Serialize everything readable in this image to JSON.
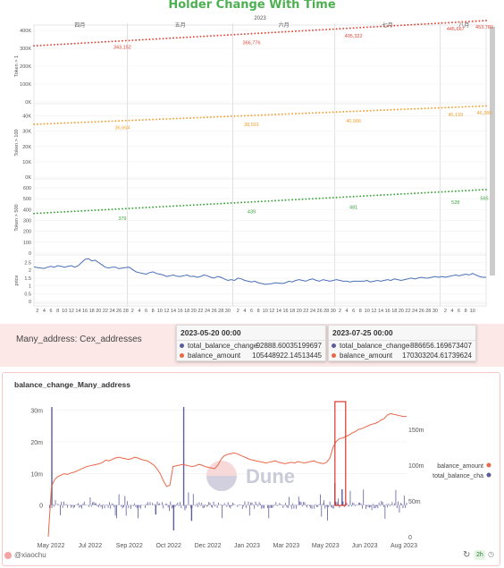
{
  "page": {
    "title": "Holder Change With Time",
    "info_label": "Many_address: Cex_addresses",
    "bottom_title": "balance_change_Many_address",
    "credit": "@xiaochu",
    "age_badge": "2h",
    "colors": {
      "title": "#4caf50",
      "red": "#e0463a",
      "orange": "#f0a030",
      "green": "#3ea33e",
      "blue": "#4a6fb5",
      "navy": "#5c5c9e",
      "balance": "#e8684a",
      "highlight_box": "#d9362b",
      "info_bg": "#fde8e8"
    },
    "icons": {
      "refresh": "refresh-icon",
      "clock": "clock-icon",
      "avatar": "avatar-icon"
    }
  },
  "tooltips": [
    {
      "date": "2023-05-20 00:00",
      "rows": [
        {
          "key": "total_balance_change",
          "value": "-92888.60035199697",
          "color": "#5c5c9e"
        },
        {
          "key": "balance_amount",
          "value": "105448922.14513445",
          "color": "#e8684a"
        }
      ]
    },
    {
      "date": "2023-07-25 00:00",
      "rows": [
        {
          "key": "total_balance_change",
          "value": "-886656.169673407",
          "color": "#5c5c9e"
        },
        {
          "key": "balance_amount",
          "value": "170303204.61739624",
          "color": "#e8684a"
        }
      ]
    }
  ],
  "chart_data": [
    {
      "type": "line",
      "title": "Holder Change With Time",
      "x_header_year": "2023",
      "x_months": [
        "四月",
        "五月",
        "六月",
        "七月",
        "八月"
      ],
      "x_month_days": [
        [
          "2",
          "4",
          "6",
          "8",
          "10",
          "12",
          "14",
          "16",
          "18",
          "20",
          "22",
          "24",
          "26",
          "28"
        ],
        [
          "2",
          "4",
          "6",
          "8",
          "10",
          "12",
          "14",
          "16",
          "18",
          "20",
          "22",
          "24",
          "26",
          "28",
          "30"
        ],
        [
          "2",
          "4",
          "6",
          "8",
          "10",
          "12",
          "14",
          "16",
          "18",
          "20",
          "22",
          "24",
          "26",
          "28",
          "30"
        ],
        [
          "2",
          "4",
          "6",
          "8",
          "10",
          "12",
          "14",
          "16",
          "18",
          "20",
          "22",
          "24",
          "26",
          "28",
          "30"
        ],
        [
          "2",
          "4",
          "6",
          "8",
          "10"
        ]
      ],
      "grid": true,
      "panels": [
        {
          "ylabel": "Token > 1",
          "color": "#e0463a",
          "yticks": [
            "400K",
            "300K",
            "200K",
            "100K",
            "0K"
          ],
          "ylim": [
            0,
            400000
          ],
          "start": 314000,
          "end": 455000,
          "labels": [
            {
              "day": 26,
              "value": 343152,
              "text": "343,152"
            },
            {
              "day": 64,
              "value": 366776,
              "text": "366,776"
            },
            {
              "day": 94,
              "value": 405322,
              "text": "405,322"
            },
            {
              "day": 124,
              "value": 445667,
              "text": "445,667"
            },
            {
              "day": 133,
              "value": 453780,
              "text": "453,780"
            }
          ]
        },
        {
          "ylabel": "Token > 100",
          "color": "#f0a030",
          "yticks": [
            "40K",
            "30K",
            "20K",
            "10K",
            "0K"
          ],
          "ylim": [
            0,
            45000
          ],
          "start": 34500,
          "end": 46500,
          "labels": [
            {
              "day": 26,
              "value": 36664,
              "text": "36,664"
            },
            {
              "day": 64,
              "value": 38591,
              "text": "38,591"
            },
            {
              "day": 94,
              "value": 40906,
              "text": "40,906"
            },
            {
              "day": 124,
              "value": 45139,
              "text": "45,139"
            },
            {
              "day": 133,
              "value": 46286,
              "text": "46,286"
            }
          ]
        },
        {
          "ylabel": "Token > 500",
          "color": "#3ea33e",
          "yticks": [
            "600",
            "500",
            "400",
            "300",
            "200",
            "100",
            "0"
          ],
          "ylim": [
            0,
            650
          ],
          "start": 365,
          "end": 585,
          "labels": [
            {
              "day": 26,
              "value": 379,
              "text": "379"
            },
            {
              "day": 64,
              "value": 439,
              "text": "439"
            },
            {
              "day": 94,
              "value": 481,
              "text": "481"
            },
            {
              "day": 124,
              "value": 528,
              "text": "528"
            },
            {
              "day": 133,
              "value": 565,
              "text": "565"
            }
          ]
        },
        {
          "ylabel": "price",
          "color": "#4a6fb5",
          "yticks": [
            "2.5",
            "2",
            "1.5",
            "1",
            "0.5",
            "0"
          ],
          "ylim": [
            0,
            2.7
          ],
          "series": [
            2.22,
            2.18,
            2.15,
            2.12,
            2.2,
            2.25,
            2.2,
            2.3,
            2.25,
            2.2,
            2.25,
            2.3,
            2.2,
            2.3,
            2.5,
            2.7,
            2.75,
            2.6,
            2.65,
            2.5,
            2.35,
            2.2,
            2.15,
            2.2,
            2.2,
            2.1,
            2.15,
            2.18,
            2.2,
            2.05,
            1.9,
            1.85,
            1.8,
            1.75,
            1.85,
            1.9,
            1.8,
            1.75,
            1.7,
            1.6,
            1.65,
            1.7,
            1.62,
            1.6,
            1.65,
            1.7,
            1.6,
            1.62,
            1.55,
            1.6,
            1.7,
            1.65,
            1.55,
            1.5,
            1.6,
            1.55,
            1.45,
            1.35,
            1.4,
            1.35,
            1.5,
            1.45,
            1.35,
            1.3,
            1.25,
            1.3,
            1.2,
            1.15,
            1.1,
            1.12,
            1.15,
            1.2,
            1.18,
            1.15,
            1.2,
            1.3,
            1.25,
            1.35,
            1.4,
            1.35,
            1.3,
            1.4,
            1.45,
            1.35,
            1.3,
            1.4,
            1.35,
            1.3,
            1.35,
            1.4,
            1.35,
            1.3,
            1.3,
            1.25,
            1.3,
            1.3,
            1.3,
            1.3,
            1.35,
            1.25,
            1.3,
            1.35,
            1.3,
            1.35,
            1.4,
            1.35,
            1.45,
            1.4,
            1.35,
            1.4,
            1.45,
            1.5,
            1.45,
            1.5,
            1.55,
            1.5,
            1.5,
            1.55,
            1.6,
            1.55,
            1.6,
            1.55,
            1.6,
            1.65,
            1.7,
            1.65,
            1.7,
            1.75,
            1.7,
            1.8,
            1.7,
            1.6,
            1.55,
            1.55
          ]
        }
      ]
    },
    {
      "type": "bar+line",
      "title": "balance_change_Many_address",
      "x_ticks": [
        "May 2022",
        "Jul 2022",
        "Sep 2022",
        "Oct 2022",
        "Dec 2022",
        "Jan 2023",
        "Mar 2023",
        "May 2023",
        "Jun 2023",
        "Aug 2023"
      ],
      "y_left_ticks": [
        "30m",
        "20m",
        "10m",
        "0"
      ],
      "y_left_lim": [
        -10000000,
        33000000
      ],
      "y_right_ticks": [
        "150m",
        "100m",
        "50m",
        "0"
      ],
      "y_right_lim": [
        0,
        190000000
      ],
      "legend": [
        {
          "name": "balance_amount",
          "color": "#e8684a"
        },
        {
          "name": "total_balance_cha",
          "color": "#5c5c9e"
        }
      ],
      "legend_position": "right",
      "watermark": "Dune",
      "balance_amount_series": [
        0,
        70,
        80,
        84,
        86,
        88,
        87,
        89,
        90,
        92,
        94,
        96,
        98,
        99,
        100,
        101,
        102,
        104,
        107,
        106,
        108,
        110,
        111,
        110,
        109,
        108,
        109,
        111,
        110,
        108,
        107,
        106,
        103,
        100,
        95,
        88,
        78,
        70,
        72,
        98,
        99,
        100,
        101,
        100,
        99,
        98,
        99,
        101,
        100,
        98,
        97,
        96,
        95,
        100,
        108,
        113,
        115,
        116,
        117,
        116,
        114,
        112,
        110,
        108,
        107,
        106,
        105,
        104,
        103,
        104,
        105,
        106,
        104,
        103,
        102,
        103,
        104,
        103,
        105,
        104,
        103,
        104,
        105,
        106,
        104,
        103,
        102,
        104,
        110,
        125,
        133,
        137,
        138,
        140,
        142,
        145,
        147,
        150,
        151,
        153,
        155,
        157,
        158,
        160,
        163,
        165,
        170,
        172,
        171,
        170,
        169,
        168,
        168
      ],
      "total_balance_change_spikes": [
        {
          "x": 0.01,
          "value": 31000000
        },
        {
          "x": 0.378,
          "value": 31000000
        },
        {
          "x": 0.8,
          "value": 7000000
        },
        {
          "x": 0.82,
          "value": 5000000
        },
        {
          "x": 0.35,
          "value": -8000000
        },
        {
          "x": 0.3,
          "value": -3000000
        },
        {
          "x": 0.4,
          "value": -5000000
        }
      ],
      "highlight_window": [
        "2023-05-20",
        "2023-06-10"
      ]
    }
  ]
}
